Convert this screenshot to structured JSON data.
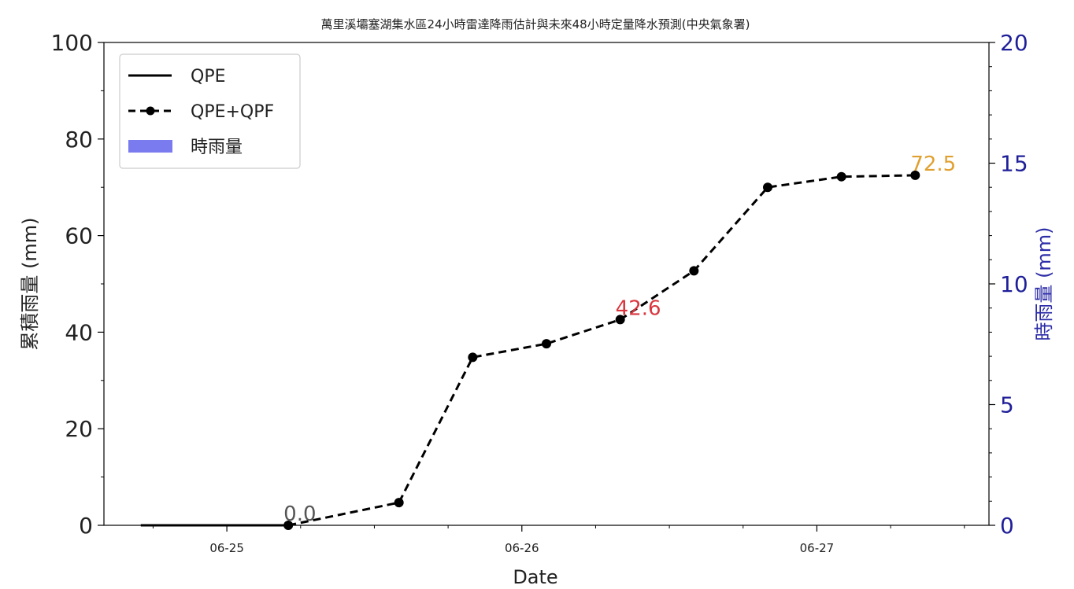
{
  "chart_data": {
    "type": "line",
    "title": "萬里溪壩塞湖集水區24小時雷達降雨估計與未來48小時定量降水預測(中央氣象署)",
    "xlabel": "Date",
    "ylabel_left": "累積雨量 (mm)",
    "ylabel_right": "時雨量 (mm)",
    "x_ticks": [
      "06-25",
      "06-26",
      "06-27"
    ],
    "x_range": [
      "2024-06-24T14:00",
      "2024-06-27T14:00"
    ],
    "ylim_left": [
      0,
      100
    ],
    "yticks_left": [
      "0",
      "20",
      "40",
      "60",
      "80",
      "100"
    ],
    "ylim_right": [
      0,
      20
    ],
    "yticks_right": [
      "0",
      "5",
      "10",
      "15",
      "20"
    ],
    "grid": false,
    "legend_position": "top-left",
    "legend": [
      {
        "label": "QPE",
        "style": "solid"
      },
      {
        "label": "QPE+QPF",
        "style": "dashed-marker"
      },
      {
        "label": "時雨量",
        "style": "bar"
      }
    ],
    "series": [
      {
        "name": "QPE",
        "color": "#000000",
        "points": [
          {
            "x": "2024-06-24T17:00",
            "y": 0
          },
          {
            "x": "2024-06-25T05:00",
            "y": 0
          }
        ]
      },
      {
        "name": "QPE+QPF",
        "color": "#000000",
        "points": [
          {
            "x": "2024-06-25T05:00",
            "y": 0.0
          },
          {
            "x": "2024-06-25T14:00",
            "y": 4.7
          },
          {
            "x": "2024-06-25T20:00",
            "y": 34.8
          },
          {
            "x": "2024-06-26T02:00",
            "y": 37.6
          },
          {
            "x": "2024-06-26T08:00",
            "y": 42.6
          },
          {
            "x": "2024-06-26T14:00",
            "y": 52.7
          },
          {
            "x": "2024-06-26T20:00",
            "y": 70.0
          },
          {
            "x": "2024-06-27T02:00",
            "y": 72.2
          },
          {
            "x": "2024-06-27T08:00",
            "y": 72.5
          }
        ]
      }
    ],
    "annotations": [
      {
        "text": "0.0",
        "x": "2024-06-25T05:00",
        "y": 0.0,
        "color": "#555555"
      },
      {
        "text": "42.6",
        "x": "2024-06-26T08:00",
        "y": 42.6,
        "color": "#d9363e"
      },
      {
        "text": "72.5",
        "x": "2024-06-27T08:00",
        "y": 72.5,
        "color": "#e0a030"
      }
    ]
  }
}
